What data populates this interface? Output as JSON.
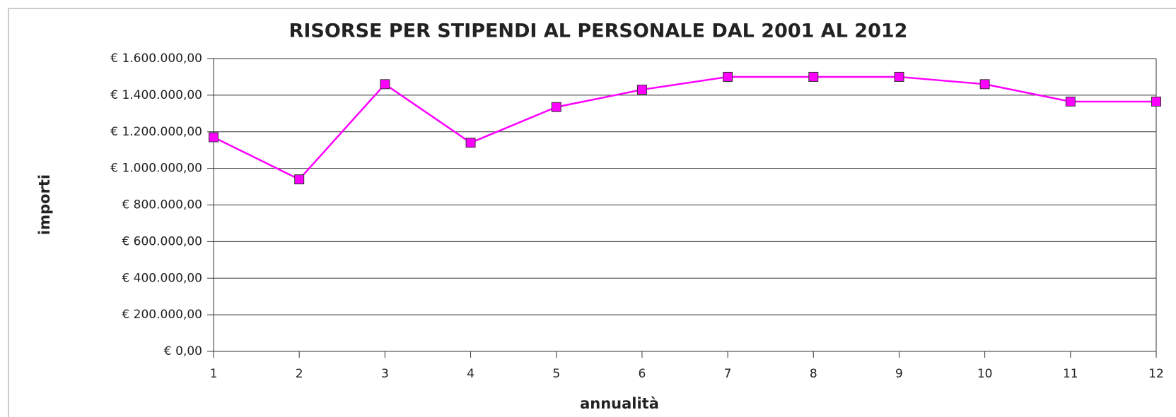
{
  "chart_data": {
    "type": "line",
    "title": "RISORSE PER STIPENDI AL PERSONALE DAL 2001 AL 2012",
    "x_label": "annualità",
    "y_label": "importi",
    "x": [
      1,
      2,
      3,
      4,
      5,
      6,
      7,
      8,
      9,
      10,
      11,
      12
    ],
    "series": [
      {
        "name": "importi",
        "color": "#ff00ff",
        "values": [
          1170000,
          940000,
          1460000,
          1140000,
          1335000,
          1430000,
          1500000,
          1500000,
          1500000,
          1460000,
          1365000,
          1365000
        ]
      }
    ],
    "xlim": [
      1,
      12
    ],
    "xticks": [
      1,
      2,
      3,
      4,
      5,
      6,
      7,
      8,
      9,
      10,
      11,
      12
    ],
    "ylim": [
      0,
      1600000
    ],
    "yticks": [
      {
        "value": 0,
        "label": "€ 0,00"
      },
      {
        "value": 200000,
        "label": "€ 200.000,00"
      },
      {
        "value": 400000,
        "label": "€ 400.000,00"
      },
      {
        "value": 600000,
        "label": "€ 600.000,00"
      },
      {
        "value": 800000,
        "label": "€ 800.000,00"
      },
      {
        "value": 1000000,
        "label": "€ 1.000.000,00"
      },
      {
        "value": 1200000,
        "label": "€ 1.200.000,00"
      },
      {
        "value": 1400000,
        "label": "€ 1.400.000,00"
      },
      {
        "value": 1600000,
        "label": "€ 1.600.000,00"
      }
    ],
    "grid": true
  }
}
